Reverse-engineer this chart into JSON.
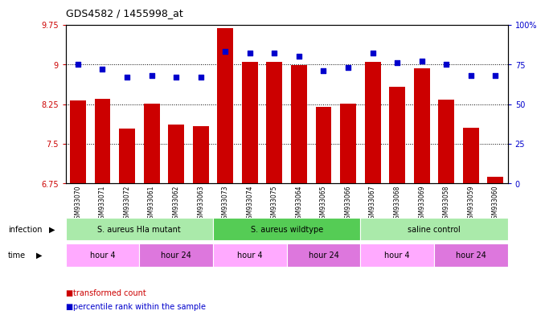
{
  "title": "GDS4582 / 1455998_at",
  "samples": [
    "GSM933070",
    "GSM933071",
    "GSM933072",
    "GSM933061",
    "GSM933062",
    "GSM933063",
    "GSM933073",
    "GSM933074",
    "GSM933075",
    "GSM933064",
    "GSM933065",
    "GSM933066",
    "GSM933067",
    "GSM933068",
    "GSM933069",
    "GSM933058",
    "GSM933059",
    "GSM933060"
  ],
  "bar_values": [
    8.32,
    8.35,
    7.79,
    8.26,
    7.87,
    7.83,
    9.68,
    9.04,
    9.05,
    8.99,
    8.2,
    8.26,
    9.05,
    8.57,
    8.93,
    8.33,
    7.8,
    6.87
  ],
  "dot_values": [
    75,
    72,
    67,
    68,
    67,
    67,
    83,
    82,
    82,
    80,
    71,
    73,
    82,
    76,
    77,
    75,
    68,
    68
  ],
  "ylim_left": [
    6.75,
    9.75
  ],
  "ylim_right": [
    0,
    100
  ],
  "yticks_left": [
    6.75,
    7.5,
    8.25,
    9.0,
    9.75
  ],
  "yticks_right": [
    0,
    25,
    50,
    75,
    100
  ],
  "ytick_labels_left": [
    "6.75",
    "7.5",
    "8.25",
    "9",
    "9.75"
  ],
  "ytick_labels_right": [
    "0",
    "25",
    "50",
    "75",
    "100%"
  ],
  "bar_color": "#CC0000",
  "dot_color": "#0000CC",
  "background_color": "#ffffff",
  "infection_groups": [
    {
      "label": "S. aureus Hla mutant",
      "start": 0,
      "end": 6,
      "color": "#aaeaaa"
    },
    {
      "label": "S. aureus wildtype",
      "start": 6,
      "end": 12,
      "color": "#55cc55"
    },
    {
      "label": "saline control",
      "start": 12,
      "end": 18,
      "color": "#aaeaaa"
    }
  ],
  "time_groups": [
    {
      "label": "hour 4",
      "start": 0,
      "end": 3,
      "color": "#ffaaff"
    },
    {
      "label": "hour 24",
      "start": 3,
      "end": 6,
      "color": "#dd77dd"
    },
    {
      "label": "hour 4",
      "start": 6,
      "end": 9,
      "color": "#ffaaff"
    },
    {
      "label": "hour 24",
      "start": 9,
      "end": 12,
      "color": "#dd77dd"
    },
    {
      "label": "hour 4",
      "start": 12,
      "end": 15,
      "color": "#ffaaff"
    },
    {
      "label": "hour 24",
      "start": 15,
      "end": 18,
      "color": "#dd77dd"
    }
  ],
  "legend_items": [
    {
      "label": "transformed count",
      "color": "#CC0000"
    },
    {
      "label": "percentile rank within the sample",
      "color": "#0000CC"
    }
  ],
  "infection_label": "infection",
  "time_label": "time",
  "ybase": 6.75
}
